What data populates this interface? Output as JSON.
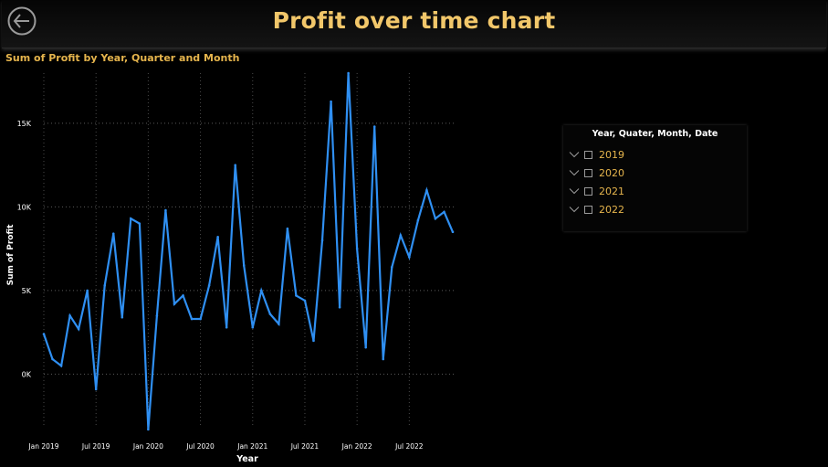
{
  "header": {
    "title": "Profit over time chart",
    "back_icon": "arrow-left-icon"
  },
  "chart_data": {
    "type": "line",
    "title": "Sum of Profit by Year, Quarter and Month",
    "xlabel": "Year",
    "ylabel": "Sum of Profit",
    "ylim": [
      -3200,
      18000
    ],
    "y_ticks": [
      {
        "value": 0,
        "label": "0K"
      },
      {
        "value": 5000,
        "label": "5K"
      },
      {
        "value": 10000,
        "label": "10K"
      },
      {
        "value": 15000,
        "label": "15K"
      }
    ],
    "x_ticks": [
      "Jan 2019",
      "Jul 2019",
      "Jan 2020",
      "Jul 2020",
      "Jan 2021",
      "Jul 2021",
      "Jan 2022",
      "Jul 2022"
    ],
    "x_tick_positions": [
      0,
      6,
      12,
      18,
      24,
      30,
      36,
      42
    ],
    "x_range": [
      0,
      47
    ],
    "grid": true,
    "line_color": "#2f8ff2",
    "series": [
      {
        "name": "",
        "values": [
          2400,
          900,
          500,
          3500,
          2700,
          5000,
          -900,
          5300,
          8400,
          3400,
          9300,
          9000,
          -3300,
          3500,
          9800,
          4200,
          4700,
          3300,
          3300,
          5300,
          8200,
          2800,
          12500,
          6500,
          2800,
          5000,
          3600,
          3000,
          8700,
          4700,
          4400,
          2000,
          8000,
          16300,
          4000,
          18000,
          7500,
          1600,
          14800,
          900,
          6400,
          8300,
          7000,
          9200,
          11000,
          9300,
          9700,
          8500
        ]
      }
    ]
  },
  "slicer": {
    "header": "Year, Quater, Month, Date",
    "items": [
      {
        "label": "2019",
        "checked": false
      },
      {
        "label": "2020",
        "checked": false
      },
      {
        "label": "2021",
        "checked": false
      },
      {
        "label": "2022",
        "checked": false
      }
    ]
  }
}
